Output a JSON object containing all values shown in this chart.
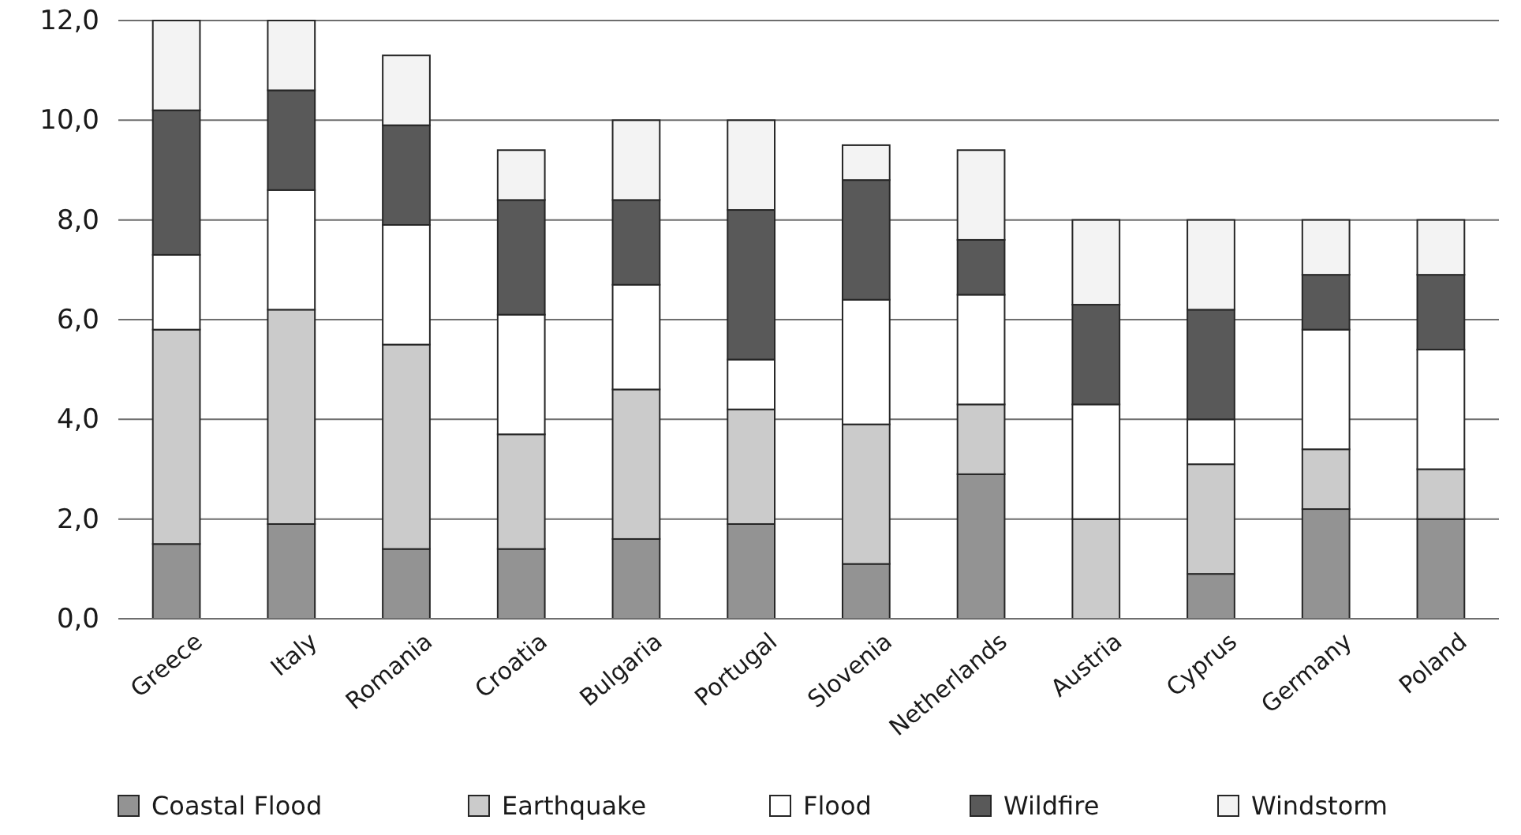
{
  "chart_data": {
    "type": "bar",
    "stacked": true,
    "categories": [
      "Greece",
      "Italy",
      "Romania",
      "Croatia",
      "Bulgaria",
      "Portugal",
      "Slovenia",
      "Netherlands",
      "Austria",
      "Cyprus",
      "Germany",
      "Poland"
    ],
    "series": [
      {
        "name": "Coastal Flood",
        "color": "#939393",
        "values": [
          1.5,
          1.9,
          1.4,
          1.4,
          1.6,
          1.9,
          1.1,
          2.9,
          0,
          0.9,
          2.2,
          2.0
        ]
      },
      {
        "name": "Earthquake",
        "color": "#cbcbcb",
        "values": [
          4.3,
          4.3,
          4.1,
          2.3,
          3.0,
          2.3,
          2.8,
          1.4,
          2.0,
          2.2,
          1.2,
          1.0
        ]
      },
      {
        "name": "Flood",
        "color": "#ffffff",
        "values": [
          1.5,
          2.4,
          2.4,
          2.4,
          2.1,
          1.0,
          2.5,
          2.2,
          2.3,
          0.9,
          2.4,
          2.4
        ]
      },
      {
        "name": "Wildfire",
        "color": "#595959",
        "values": [
          2.9,
          2.0,
          2.0,
          2.3,
          1.7,
          3.0,
          2.4,
          1.1,
          2.0,
          2.2,
          1.1,
          1.5
        ]
      },
      {
        "name": "Windstorm",
        "color": "#f3f3f3",
        "values": [
          1.8,
          1.4,
          1.4,
          1.0,
          1.6,
          1.8,
          0.7,
          1.8,
          1.7,
          1.8,
          1.1,
          1.1
        ]
      }
    ],
    "ylim": [
      0,
      12
    ],
    "yticks": [
      {
        "value": 0,
        "label": "0,0"
      },
      {
        "value": 2,
        "label": "2,0"
      },
      {
        "value": 4,
        "label": "4,0"
      },
      {
        "value": 6,
        "label": "6,0"
      },
      {
        "value": 8,
        "label": "8,0"
      },
      {
        "value": 10,
        "label": "10,0"
      },
      {
        "value": 12,
        "label": "12,0"
      }
    ],
    "grid": "y",
    "legend": "bottom"
  }
}
